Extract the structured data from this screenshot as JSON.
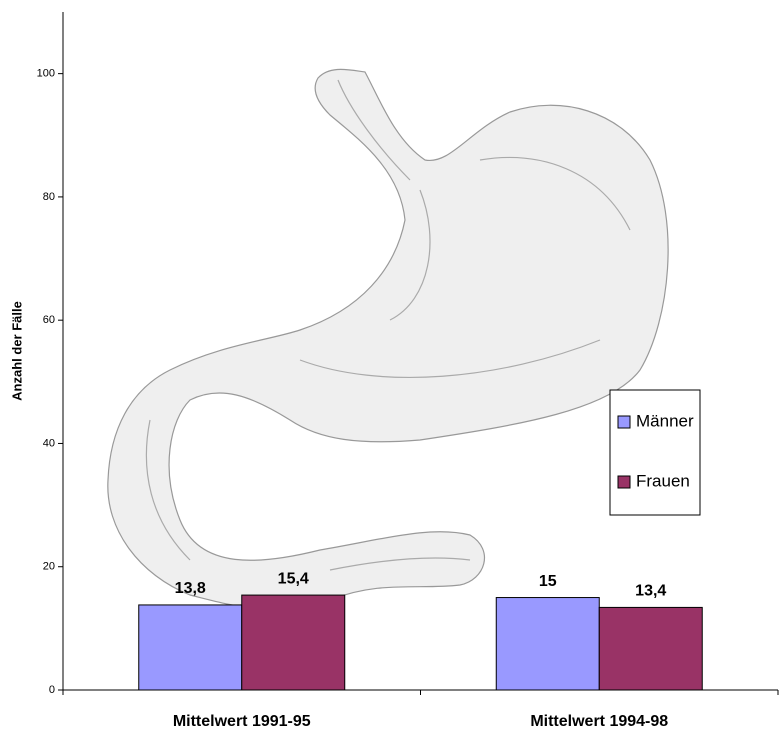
{
  "chart_data": {
    "type": "bar",
    "y_label": "Anzahl der Fälle",
    "categories": [
      "Mittelwert 1991-95",
      "Mittelwert 1994-98"
    ],
    "series": [
      {
        "name": "Männer",
        "color": "#9999ff",
        "values": [
          13.8,
          15
        ],
        "value_labels": [
          "13,8",
          "15"
        ]
      },
      {
        "name": "Frauen",
        "color": "#993366",
        "values": [
          15.4,
          13.4
        ],
        "value_labels": [
          "15,4",
          "13,4"
        ]
      }
    ],
    "ylim": [
      0,
      110
    ],
    "yticks": [
      0,
      20,
      40,
      60,
      80,
      100
    ],
    "grid": false,
    "legend": "right"
  }
}
